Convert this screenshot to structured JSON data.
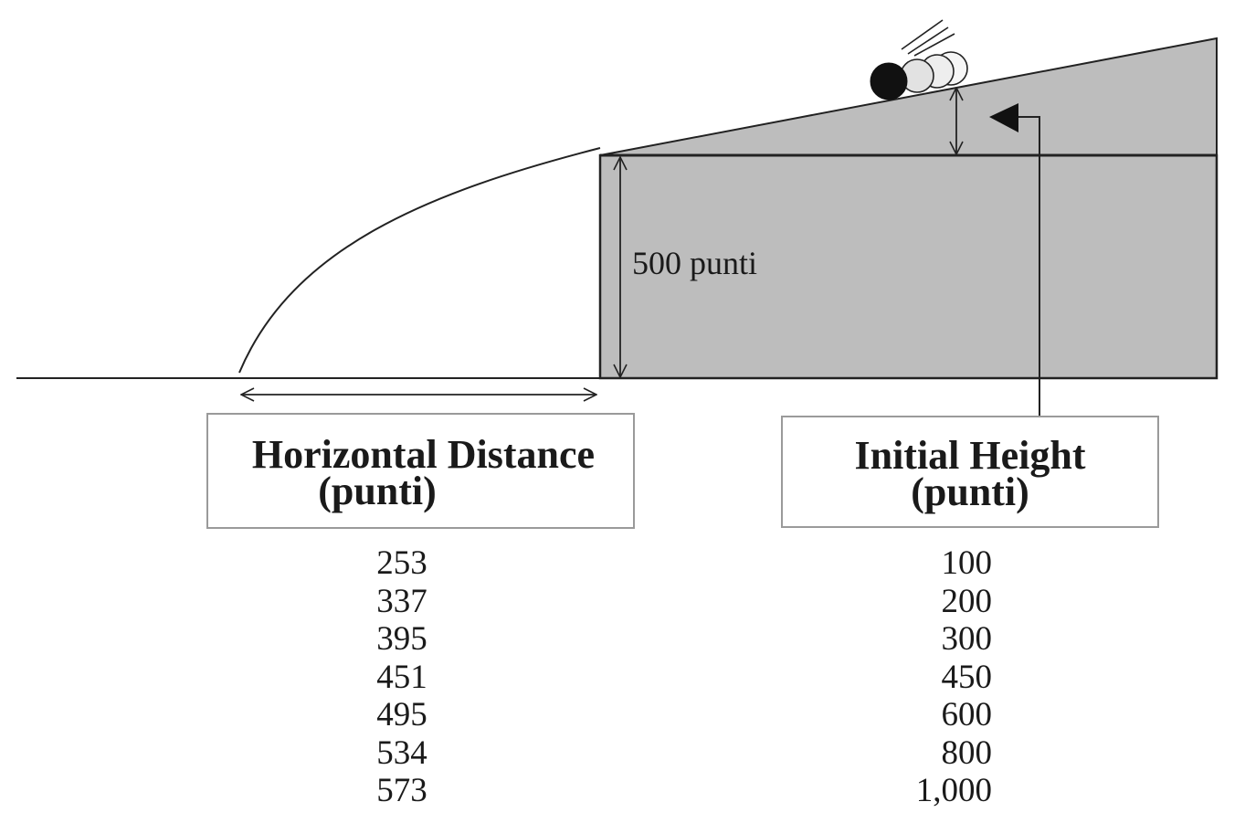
{
  "labels": {
    "vertical_dimension": "500 punti"
  },
  "box_horizontal": {
    "line1": "Horizontal Distance",
    "line2": "(punti)"
  },
  "box_height": {
    "line1": "Initial Height",
    "line2": "(punti)"
  },
  "table": {
    "horizontal_distance": [
      "253",
      "337",
      "395",
      "451",
      "495",
      "534",
      "573"
    ],
    "initial_height": [
      "100",
      "200",
      "300",
      "450",
      "600",
      "800",
      "1,000"
    ]
  },
  "colors": {
    "ramp_fill": "#bdbdbd",
    "line": "#222222",
    "box_border": "#9a9a9a",
    "ball_dark": "#111111",
    "ball_light": "#e8e8e8"
  }
}
